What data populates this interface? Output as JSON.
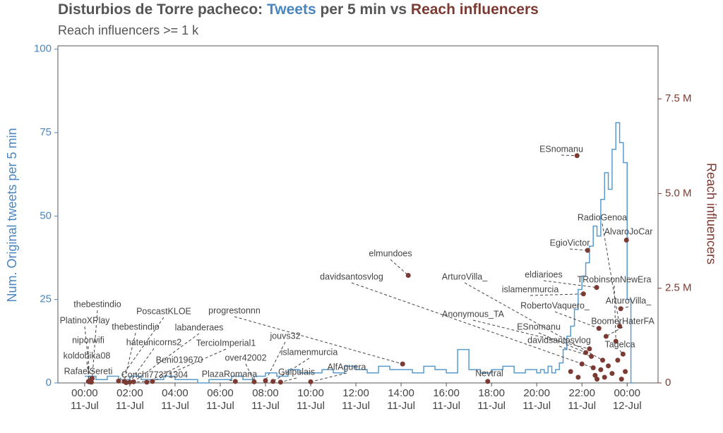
{
  "chart_data": {
    "type": "step-scatter",
    "title": [
      "Disturbios de Torre pacheco:",
      "Tweets",
      "per 5 min vs",
      "Reach influencers"
    ],
    "subtitle": "Reach influencers  >= 1 k",
    "ylabel": "Num. Original tweets per 5 min",
    "y2label": "Reach influencers",
    "xlim": [
      "10-Jul 22:49",
      "12-Jul 01:22"
    ],
    "xticks": [
      {
        "value": "11-Jul 00:00",
        "label": "00:00\n11-Jul"
      },
      {
        "value": "11-Jul 02:00",
        "label": "02:00\n11-Jul"
      },
      {
        "value": "11-Jul 04:00",
        "label": "04:00\n11-Jul"
      },
      {
        "value": "11-Jul 06:00",
        "label": "06:00\n11-Jul"
      },
      {
        "value": "11-Jul 08:00",
        "label": "08:00\n11-Jul"
      },
      {
        "value": "11-Jul 10:00",
        "label": "10:00\n11-Jul"
      },
      {
        "value": "11-Jul 12:00",
        "label": "12:00\n11-Jul"
      },
      {
        "value": "11-Jul 14:00",
        "label": "14:00\n11-Jul"
      },
      {
        "value": "11-Jul 16:00",
        "label": "16:00\n11-Jul"
      },
      {
        "value": "11-Jul 18:00",
        "label": "18:00\n11-Jul"
      },
      {
        "value": "11-Jul 20:00",
        "label": "20:00\n11-Jul"
      },
      {
        "value": "11-Jul 22:00",
        "label": "22:00\n11-Jul"
      },
      {
        "value": "12-Jul 00:00",
        "label": "00:00\n12-Jul"
      }
    ],
    "ylim": [
      0,
      101
    ],
    "yticks": [
      0,
      25,
      50,
      75,
      100
    ],
    "y2lim": [
      0,
      8900000
    ],
    "y2ticks": [
      0,
      {
        "value": 2500000,
        "label": "2.5 M"
      },
      {
        "value": 5000000,
        "label": "5.0 M"
      },
      {
        "value": 7500000,
        "label": "7.5 M"
      }
    ],
    "series": [
      {
        "name": "Tweets",
        "type": "step",
        "color": "#5b9bcb",
        "x": [
          "11-Jul 00:00",
          "11-Jul 00:30",
          "11-Jul 01:00",
          "11-Jul 01:30",
          "11-Jul 02:00",
          "11-Jul 02:30",
          "11-Jul 03:00",
          "11-Jul 03:30",
          "11-Jul 04:00",
          "11-Jul 04:30",
          "11-Jul 05:00",
          "11-Jul 05:30",
          "11-Jul 06:00",
          "11-Jul 06:30",
          "11-Jul 07:00",
          "11-Jul 07:30",
          "11-Jul 08:00",
          "11-Jul 08:30",
          "11-Jul 09:00",
          "11-Jul 09:30",
          "11-Jul 10:00",
          "11-Jul 10:30",
          "11-Jul 11:00",
          "11-Jul 11:30",
          "11-Jul 12:00",
          "11-Jul 12:30",
          "11-Jul 13:00",
          "11-Jul 13:30",
          "11-Jul 14:00",
          "11-Jul 14:30",
          "11-Jul 15:00",
          "11-Jul 15:30",
          "11-Jul 16:00",
          "11-Jul 16:30",
          "11-Jul 17:00",
          "11-Jul 17:30",
          "11-Jul 18:00",
          "11-Jul 18:30",
          "11-Jul 19:00",
          "11-Jul 19:30",
          "11-Jul 20:00",
          "11-Jul 20:10",
          "11-Jul 20:20",
          "11-Jul 20:30",
          "11-Jul 20:40",
          "11-Jul 20:50",
          "11-Jul 21:00",
          "11-Jul 21:10",
          "11-Jul 21:20",
          "11-Jul 21:30",
          "11-Jul 21:40",
          "11-Jul 21:50",
          "11-Jul 22:00",
          "11-Jul 22:10",
          "11-Jul 22:20",
          "11-Jul 22:30",
          "11-Jul 22:40",
          "11-Jul 22:50",
          "11-Jul 23:00",
          "11-Jul 23:10",
          "11-Jul 23:20",
          "11-Jul 23:30",
          "11-Jul 23:40",
          "11-Jul 23:50",
          "12-Jul 00:00",
          "12-Jul 00:10"
        ],
        "values": [
          2,
          1,
          2,
          1,
          2,
          1,
          1,
          2,
          1,
          1,
          0,
          1,
          1,
          2,
          1,
          2,
          3,
          2,
          4,
          3,
          3,
          4,
          3,
          5,
          4,
          3,
          5,
          4,
          4,
          3,
          5,
          4,
          3,
          10,
          4,
          3,
          4,
          5,
          3,
          4,
          3,
          4,
          3,
          5,
          3,
          4,
          6,
          10,
          14,
          17,
          22,
          28,
          32,
          36,
          41,
          47,
          44,
          55,
          63,
          58,
          70,
          78,
          72,
          66,
          25,
          0
        ]
      },
      {
        "name": "Reach influencers",
        "type": "scatter",
        "axis": "y2",
        "color": "#7b3b32",
        "x": [
          "11-Jul 00:20",
          "11-Jul 00:15",
          "11-Jul 00:10",
          "11-Jul 00:12",
          "11-Jul 00:18",
          "11-Jul 01:30",
          "11-Jul 01:45",
          "11-Jul 02:10",
          "11-Jul 02:00",
          "11-Jul 03:00",
          "11-Jul 02:45",
          "11-Jul 01:50",
          "11-Jul 06:40",
          "11-Jul 08:00",
          "11-Jul 07:30",
          "11-Jul 08:20",
          "11-Jul 08:40",
          "11-Jul 10:00",
          "11-Jul 17:50",
          "11-Jul 14:04",
          "11-Jul 14:19",
          "11-Jul 22:30",
          "11-Jul 22:55",
          "11-Jul 21:47",
          "11-Jul 23:40",
          "11-Jul 23:58",
          "11-Jul 22:15",
          "11-Jul 22:39",
          "11-Jul 23:30",
          "11-Jul 22:04",
          "11-Jul 23:43",
          "11-Jul 22:45",
          "11-Jul 22:20",
          "11-Jul 23:04",
          "11-Jul 22:10",
          "11-Jul 22:25",
          "11-Jul 23:49",
          "11-Jul 21:30",
          "11-Jul 22:00",
          "11-Jul 22:35",
          "11-Jul 22:50",
          "11-Jul 23:10",
          "11-Jul 23:20",
          "11-Jul 23:35",
          "11-Jul 23:55",
          "11-Jul 22:40",
          "11-Jul 23:00",
          "11-Jul 21:50",
          "11-Jul 23:45"
        ],
        "values": [
          120000,
          60000,
          40000,
          30000,
          20000,
          50000,
          40000,
          30000,
          20000,
          40000,
          20000,
          10000,
          40000,
          60000,
          30000,
          40000,
          20000,
          30000,
          40000,
          500000,
          2840000,
          400000,
          600000,
          6000000,
          1500000,
          3770000,
          3500000,
          2520000,
          1100000,
          2350000,
          1960000,
          1440000,
          900000,
          1230000,
          800000,
          700000,
          760000,
          300000,
          500000,
          200000,
          350000,
          450000,
          250000,
          600000,
          300000,
          100000,
          150000,
          150000,
          100000
        ],
        "labels": [
          "thebestindio",
          "PlatinoXPlay",
          "niporwifi",
          "koldobika08",
          "RafaelSereti",
          "PoscastKLOE",
          "thebestindio",
          "labanderaes",
          "hateunicorns2",
          "TercioImperial1",
          "Beni019670",
          "Conchi77371304",
          "PlazaRomana",
          "jouvs32",
          "over42002",
          "islamenmurcia",
          "Guipulais",
          "AlfAguera",
          "Nevtral",
          "progrestonnn",
          "elmundoes",
          "davidsantosvlog",
          "ArturoVilla_",
          "ESnomanu",
          "RadioGenoa",
          "AlvaroJoCar",
          "EgioVictor",
          "eldiarioes",
          "TRobinsonNewEra",
          "islamenmurcia",
          "ArturoVilla_",
          "RobertoVaquero_",
          "Anonymous_TA",
          "BoomerHaterFA",
          "ESnomanu",
          "davidsantosvlog",
          "Tagelca",
          null,
          null,
          null,
          null,
          null,
          null,
          null,
          null,
          null,
          null,
          null,
          null
        ]
      }
    ]
  }
}
